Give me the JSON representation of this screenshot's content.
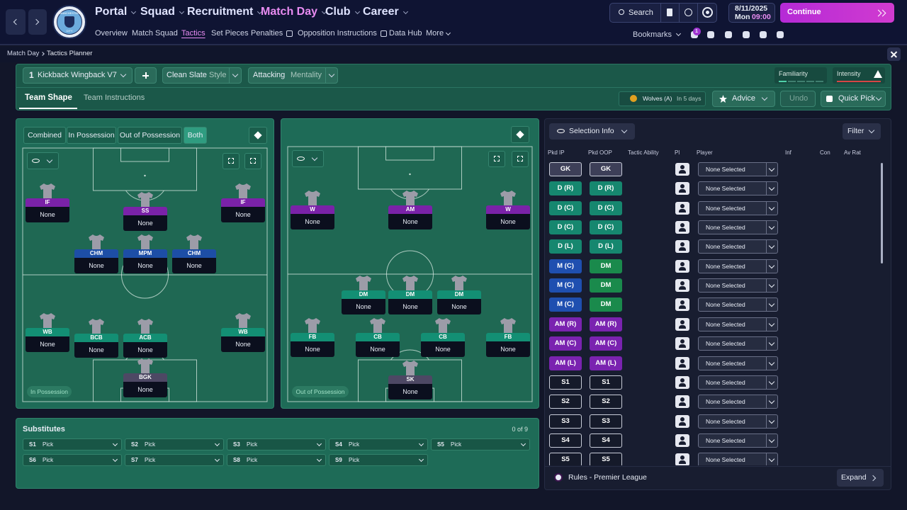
{
  "nav": {
    "badge_text": [
      "MANCHESTER",
      "CITY"
    ],
    "menus": [
      "Portal",
      "Squad",
      "Recruitment",
      "Match Day",
      "Club",
      "Career"
    ],
    "menu_color": "#dfe3ff",
    "active_menu_color": "#e98cf2",
    "submenu": [
      "Overview",
      "Match Squad",
      "Tactics",
      "Set Pieces",
      "Penalties",
      "Opposition Instructions",
      "Data Hub",
      "More"
    ],
    "search": "Search",
    "date": "8/11/2025",
    "day": "Mon",
    "time": "09:00",
    "continue": "Continue",
    "bookmarks": "Bookmarks",
    "badge": "1"
  },
  "breadcrumb": [
    "Match Day",
    "Tactics Planner"
  ],
  "tactic": {
    "slot": "1",
    "name": "Kickback Wingback V7",
    "style": "Clean Slate",
    "style_label": "Style",
    "mentality": "Attacking",
    "mentality_label": "Mentality",
    "familiarity": "Familiarity",
    "intensity": "Intensity",
    "tabs": [
      "Team Shape",
      "Team Instructions"
    ],
    "opponent": "Wolves (A)",
    "opponent_when": "In 5 days",
    "advice": "Advice",
    "undo": "Undo",
    "quick_pick": "Quick Pick"
  },
  "shape": {
    "filters": [
      "Combined",
      "In Possession",
      "Out of Possession",
      "Both"
    ],
    "in_possession": {
      "label": "In Possession",
      "players": [
        {
          "role": "IF",
          "player": "None",
          "color": "#7a22a8"
        },
        {
          "role": "SS",
          "player": "None",
          "color": "#7a22a8"
        },
        {
          "role": "IF",
          "player": "None",
          "color": "#7a22a8"
        },
        {
          "role": "CHM",
          "player": "None",
          "color": "#1d4ea6"
        },
        {
          "role": "MPM",
          "player": "None",
          "color": "#1d4ea6"
        },
        {
          "role": "CHM",
          "player": "None",
          "color": "#1d4ea6"
        },
        {
          "role": "WB",
          "player": "None",
          "color": "#138f74"
        },
        {
          "role": "BCB",
          "player": "None",
          "color": "#138f74"
        },
        {
          "role": "ACB",
          "player": "None",
          "color": "#138f74"
        },
        {
          "role": "WB",
          "player": "None",
          "color": "#138f74"
        },
        {
          "role": "BGK",
          "player": "None",
          "color": "#4d4864"
        }
      ]
    },
    "out_of_possession": {
      "label": "Out of Possession",
      "players": [
        {
          "role": "W",
          "player": "None",
          "color": "#7a22a8"
        },
        {
          "role": "AM",
          "player": "None",
          "color": "#7a22a8"
        },
        {
          "role": "W",
          "player": "None",
          "color": "#7a22a8"
        },
        {
          "role": "DM",
          "player": "None",
          "color": "#138f74"
        },
        {
          "role": "DM",
          "player": "None",
          "color": "#138f74"
        },
        {
          "role": "DM",
          "player": "None",
          "color": "#138f74"
        },
        {
          "role": "FB",
          "player": "None",
          "color": "#138f74"
        },
        {
          "role": "CB",
          "player": "None",
          "color": "#138f74"
        },
        {
          "role": "CB",
          "player": "None",
          "color": "#138f74"
        },
        {
          "role": "FB",
          "player": "None",
          "color": "#138f74"
        },
        {
          "role": "SK",
          "player": "None",
          "color": "#4d4864"
        }
      ]
    }
  },
  "substitutes": {
    "title": "Substitutes",
    "count": "0 of 9",
    "slots": [
      {
        "slot": "S1",
        "pick": "Pick"
      },
      {
        "slot": "S2",
        "pick": "Pick"
      },
      {
        "slot": "S3",
        "pick": "Pick"
      },
      {
        "slot": "S4",
        "pick": "Pick"
      },
      {
        "slot": "S5",
        "pick": "Pick"
      },
      {
        "slot": "S6",
        "pick": "Pick"
      },
      {
        "slot": "S7",
        "pick": "Pick"
      },
      {
        "slot": "S8",
        "pick": "Pick"
      },
      {
        "slot": "S9",
        "pick": "Pick"
      }
    ]
  },
  "selection": {
    "title": "Selection Info",
    "filter": "Filter",
    "columns": [
      "Pkd IP",
      "Pkd OOP",
      "Tactic Ability",
      "Pl",
      "Player",
      "Inf",
      "Con",
      "Av Rat"
    ],
    "rows": [
      {
        "ip": "GK",
        "ip_color": "#3d3f58",
        "oop": "GK",
        "oop_color": "#3d3f58",
        "player": "None Selected"
      },
      {
        "ip": "D (R)",
        "ip_color": "#16876f",
        "oop": "D (R)",
        "oop_color": "#16876f",
        "player": "None Selected"
      },
      {
        "ip": "D (C)",
        "ip_color": "#16876f",
        "oop": "D (C)",
        "oop_color": "#16876f",
        "player": "None Selected"
      },
      {
        "ip": "D (C)",
        "ip_color": "#16876f",
        "oop": "D (C)",
        "oop_color": "#16876f",
        "player": "None Selected"
      },
      {
        "ip": "D (L)",
        "ip_color": "#16876f",
        "oop": "D (L)",
        "oop_color": "#16876f",
        "player": "None Selected"
      },
      {
        "ip": "M (C)",
        "ip_color": "#1f4fb0",
        "oop": "DM",
        "oop_color": "#1a8a4c",
        "player": "None Selected"
      },
      {
        "ip": "M (C)",
        "ip_color": "#1f4fb0",
        "oop": "DM",
        "oop_color": "#1a8a4c",
        "player": "None Selected"
      },
      {
        "ip": "M (C)",
        "ip_color": "#1f4fb0",
        "oop": "DM",
        "oop_color": "#1a8a4c",
        "player": "None Selected"
      },
      {
        "ip": "AM (R)",
        "ip_color": "#7a23b0",
        "oop": "AM (R)",
        "oop_color": "#7a23b0",
        "player": "None Selected"
      },
      {
        "ip": "AM (C)",
        "ip_color": "#7a23b0",
        "oop": "AM (C)",
        "oop_color": "#7a23b0",
        "player": "None Selected"
      },
      {
        "ip": "AM (L)",
        "ip_color": "#7a23b0",
        "oop": "AM (L)",
        "oop_color": "#7a23b0",
        "player": "None Selected"
      },
      {
        "ip": "S1",
        "ip_color": "#151a2a",
        "oop": "S1",
        "oop_color": "#151a2a",
        "player": "None Selected"
      },
      {
        "ip": "S2",
        "ip_color": "#151a2a",
        "oop": "S2",
        "oop_color": "#151a2a",
        "player": "None Selected"
      },
      {
        "ip": "S3",
        "ip_color": "#151a2a",
        "oop": "S3",
        "oop_color": "#151a2a",
        "player": "None Selected"
      },
      {
        "ip": "S4",
        "ip_color": "#151a2a",
        "oop": "S4",
        "oop_color": "#151a2a",
        "player": "None Selected"
      },
      {
        "ip": "S5",
        "ip_color": "#151a2a",
        "oop": "S5",
        "oop_color": "#151a2a",
        "player": "None Selected"
      }
    ],
    "rules": "Rules - Premier League",
    "expand": "Expand"
  }
}
